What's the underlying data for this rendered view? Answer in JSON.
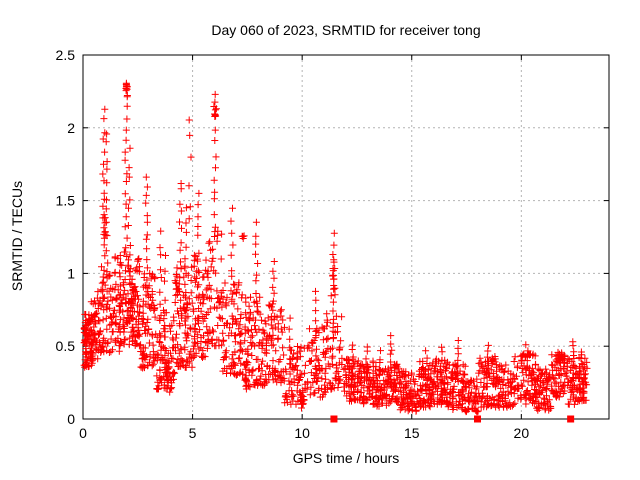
{
  "chart_data": {
    "type": "scatter",
    "title": "Day 060 of 2023, SRMTID for receiver tong",
    "xlabel": "GPS time / hours",
    "ylabel": "SRMTID / TECUs",
    "xlim": [
      0,
      24
    ],
    "ylim": [
      0,
      2.5
    ],
    "xticks": {
      "values": [
        0,
        5,
        10,
        15,
        20
      ],
      "labels": [
        "0",
        "5",
        "10",
        "15",
        "20"
      ]
    },
    "yticks": {
      "values": [
        0,
        0.5,
        1,
        1.5,
        2,
        2.5
      ],
      "labels": [
        "0",
        "0.5",
        "1",
        "1.5",
        "2",
        "2.5"
      ]
    },
    "grid": true,
    "legend": "none",
    "marker": "plus",
    "marker_color": "#ff0000",
    "grid_color": "#b4b4b4",
    "border_color": "#000000",
    "seed": 42,
    "clusters_format": [
      "[band,x0,x1,y0,y1,n,bias]",
      "[col,x,y0,y1,n]",
      "[blob,xc,sx,yc,sy,n]"
    ],
    "clusters": [
      [
        "band",
        0.03,
        0.45,
        0.35,
        0.72,
        70,
        1.0
      ],
      [
        "band",
        0.3,
        0.8,
        0.4,
        0.88,
        50,
        1.2
      ],
      [
        "col",
        0.12,
        0.38,
        0.62,
        8
      ],
      [
        "col",
        0.95,
        0.75,
        2.12,
        20
      ],
      [
        "col",
        1.08,
        0.6,
        1.97,
        16
      ],
      [
        "band",
        0.75,
        1.45,
        0.45,
        1.05,
        55,
        1.3
      ],
      [
        "blob",
        1.0,
        0.05,
        1.35,
        0.15,
        10
      ],
      [
        "col",
        1.97,
        0.95,
        2.2,
        18
      ],
      [
        "blob",
        1.99,
        0.03,
        2.27,
        0.04,
        14
      ],
      [
        "col",
        2.12,
        0.7,
        1.85,
        12
      ],
      [
        "band",
        1.45,
        2.6,
        0.5,
        1.15,
        120,
        1.5
      ],
      [
        "col",
        1.7,
        0.45,
        1.05,
        10
      ],
      [
        "blob",
        2.3,
        0.1,
        0.8,
        0.18,
        25
      ],
      [
        "col",
        2.9,
        0.9,
        1.66,
        13
      ],
      [
        "band",
        2.6,
        3.3,
        0.35,
        1.0,
        80,
        1.4
      ],
      [
        "band",
        3.3,
        4.2,
        0.2,
        0.75,
        75,
        1.4
      ],
      [
        "col",
        3.55,
        0.5,
        1.27,
        11
      ],
      [
        "blob",
        3.9,
        0.12,
        0.28,
        0.08,
        18
      ],
      [
        "col",
        3.75,
        0.4,
        1.1,
        9
      ],
      [
        "col",
        4.45,
        0.75,
        1.63,
        14
      ],
      [
        "col",
        4.68,
        0.6,
        1.45,
        11
      ],
      [
        "col",
        4.88,
        1.35,
        2.07,
        6
      ],
      [
        "band",
        4.2,
        5.0,
        0.35,
        1.05,
        85,
        1.4
      ],
      [
        "col",
        5.25,
        0.6,
        1.56,
        13
      ],
      [
        "band",
        5.0,
        5.7,
        0.42,
        1.15,
        70,
        1.4
      ],
      [
        "col",
        6.02,
        1.25,
        2.22,
        13
      ],
      [
        "blob",
        6.03,
        0.04,
        2.12,
        0.05,
        7
      ],
      [
        "band",
        5.7,
        6.35,
        0.5,
        1.3,
        55,
        1.5
      ],
      [
        "band",
        6.35,
        7.3,
        0.3,
        0.95,
        85,
        1.4
      ],
      [
        "col",
        6.8,
        0.8,
        1.43,
        9
      ],
      [
        "blob",
        7.28,
        0.05,
        1.27,
        0.04,
        4
      ],
      [
        "col",
        7.92,
        0.6,
        1.34,
        12
      ],
      [
        "band",
        7.35,
        8.3,
        0.22,
        0.85,
        85,
        1.4
      ],
      [
        "blob",
        7.45,
        0.08,
        0.3,
        0.08,
        12
      ],
      [
        "col",
        8.68,
        0.5,
        1.09,
        11
      ],
      [
        "band",
        8.3,
        9.2,
        0.25,
        0.8,
        75,
        1.4
      ],
      [
        "band",
        9.2,
        10.15,
        0.1,
        0.5,
        70,
        1.3
      ],
      [
        "col",
        9.45,
        0.3,
        0.68,
        7
      ],
      [
        "blob",
        10.0,
        0.08,
        0.1,
        0.04,
        8
      ],
      [
        "band",
        10.2,
        11.1,
        0.15,
        0.65,
        65,
        1.3
      ],
      [
        "col",
        10.62,
        0.35,
        0.88,
        9
      ],
      [
        "col",
        11.45,
        0.55,
        1.26,
        13
      ],
      [
        "blob",
        11.43,
        0.08,
        0.97,
        0.1,
        12
      ],
      [
        "band",
        11.1,
        11.85,
        0.2,
        0.75,
        50,
        1.4
      ],
      [
        "band",
        11.9,
        12.6,
        0.12,
        0.42,
        65,
        1.2
      ],
      [
        "col",
        12.3,
        0.25,
        0.52,
        7
      ],
      [
        "band",
        12.6,
        13.3,
        0.1,
        0.4,
        70,
        1.2
      ],
      [
        "col",
        12.95,
        0.28,
        0.5,
        6
      ],
      [
        "band",
        13.3,
        14.0,
        0.08,
        0.36,
        70,
        1.2
      ],
      [
        "col",
        13.55,
        0.25,
        0.46,
        6
      ],
      [
        "col",
        14.05,
        0.25,
        0.57,
        8
      ],
      [
        "band",
        14.0,
        14.45,
        0.1,
        0.38,
        40,
        1.2
      ],
      [
        "band",
        14.45,
        15.35,
        0.05,
        0.33,
        85,
        1.2
      ],
      [
        "band",
        15.35,
        16.05,
        0.08,
        0.4,
        75,
        1.2
      ],
      [
        "col",
        15.65,
        0.25,
        0.46,
        6
      ],
      [
        "band",
        16.05,
        16.65,
        0.1,
        0.42,
        65,
        1.2
      ],
      [
        "col",
        16.35,
        0.28,
        0.5,
        6
      ],
      [
        "band",
        16.65,
        17.45,
        0.06,
        0.38,
        75,
        1.2
      ],
      [
        "col",
        17.1,
        0.28,
        0.53,
        7
      ],
      [
        "band",
        17.45,
        18.05,
        0.05,
        0.3,
        45,
        1.2
      ],
      [
        "band",
        18.05,
        18.85,
        0.08,
        0.43,
        75,
        1.2
      ],
      [
        "col",
        18.45,
        0.28,
        0.5,
        7
      ],
      [
        "band",
        18.85,
        19.65,
        0.08,
        0.38,
        70,
        1.2
      ],
      [
        "band",
        19.65,
        20.65,
        0.1,
        0.45,
        85,
        1.2
      ],
      [
        "col",
        20.25,
        0.3,
        0.5,
        7
      ],
      [
        "band",
        20.65,
        21.35,
        0.06,
        0.35,
        70,
        1.2
      ],
      [
        "band",
        21.35,
        22.0,
        0.15,
        0.47,
        60,
        1.2
      ],
      [
        "blob",
        21.75,
        0.12,
        0.42,
        0.05,
        12
      ],
      [
        "band",
        22.05,
        22.55,
        0.1,
        0.42,
        35,
        1.2
      ],
      [
        "col",
        22.35,
        0.2,
        0.51,
        9
      ],
      [
        "band",
        22.55,
        23.0,
        0.12,
        0.45,
        50,
        1.2
      ],
      [
        "col",
        22.7,
        0.15,
        0.45,
        8
      ]
    ],
    "outlier_points": [
      [
        22.35,
        0.53
      ]
    ],
    "square_markers": [
      [
        11.45,
        0
      ],
      [
        18.0,
        0
      ],
      [
        22.25,
        0
      ]
    ]
  }
}
